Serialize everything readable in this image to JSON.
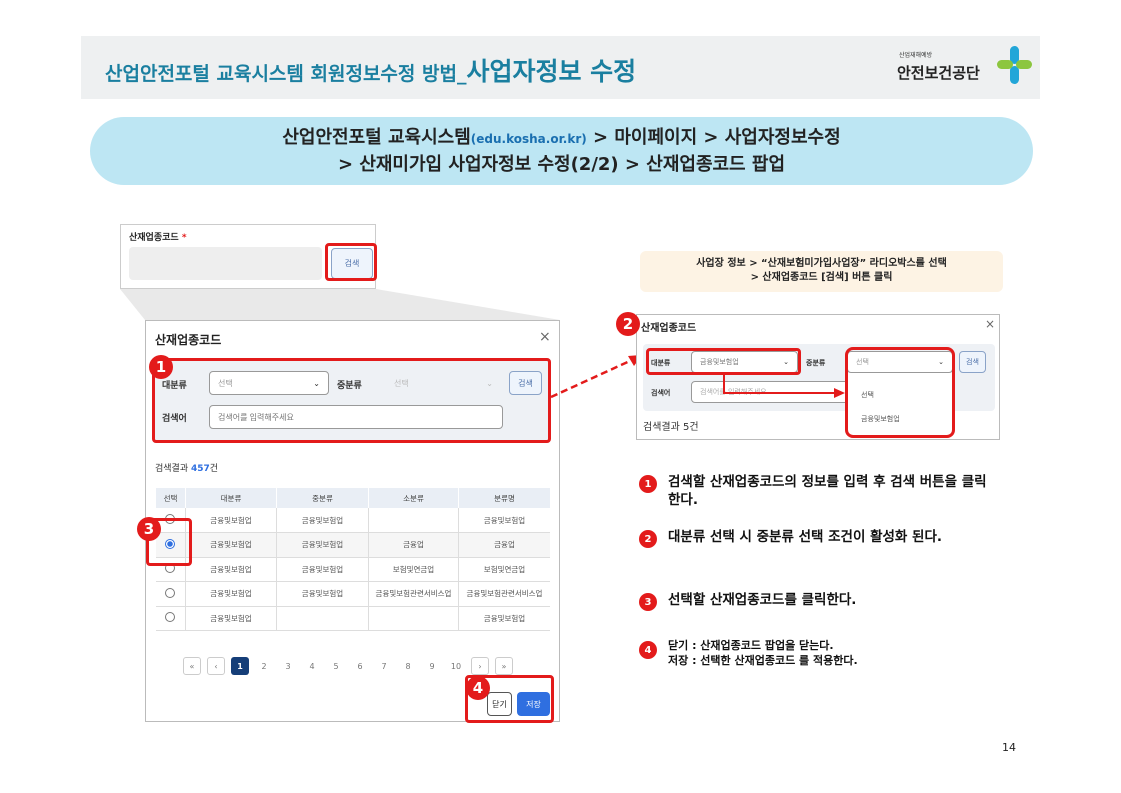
{
  "header": {
    "title_prefix": "산업안전포털 교육시스템 회원정보수정 방법_",
    "title_main": "사업자정보 수정",
    "logo_small": "산업재해예방",
    "logo_name": "안전보건공단"
  },
  "breadcrumb": {
    "line1_a": "산업안전포털 교육시스템",
    "line1_url": "(edu.kosha.or.kr)",
    "line1_b": " > 마이페이지 > 사업자정보수정",
    "line2": "> 산재미가입 사업자정보 수정(2/2) > 산재업종코드 팝업"
  },
  "field_card": {
    "label": "산재업종코드",
    "required": "*",
    "search_button": "검색"
  },
  "modal": {
    "title": "산재업종코드",
    "close": "×",
    "major_label": "대분류",
    "major_value": "선택",
    "middle_label": "중분류",
    "middle_value": "선택",
    "search_button": "검색",
    "keyword_label": "검색어",
    "keyword_placeholder": "검색어를 입력해주세요",
    "result_label": "검색결과 ",
    "result_count": "457",
    "result_unit": "건",
    "columns": [
      "선택",
      "대분류",
      "중분류",
      "소분류",
      "분류명"
    ],
    "rows": [
      {
        "selected": false,
        "cells": [
          "금융및보험업",
          "금융및보험업",
          "",
          "금융및보험업"
        ]
      },
      {
        "selected": true,
        "cells": [
          "금융및보험업",
          "금융및보험업",
          "금융업",
          "금융업"
        ]
      },
      {
        "selected": false,
        "cells": [
          "금융및보험업",
          "금융및보험업",
          "보험및연금업",
          "보험및연금업"
        ]
      },
      {
        "selected": false,
        "cells": [
          "금융및보험업",
          "금융및보험업",
          "금융및보험관련서비스업",
          "금융및보험관련서비스업"
        ]
      },
      {
        "selected": false,
        "cells": [
          "금융및보험업",
          "",
          "",
          "금융및보험업"
        ]
      }
    ],
    "pagination": {
      "first": "«",
      "prev": "‹",
      "pages": [
        "1",
        "2",
        "3",
        "4",
        "5",
        "6",
        "7",
        "8",
        "9",
        "10"
      ],
      "current": "1",
      "next": "›",
      "last": "»"
    },
    "close_button": "닫기",
    "save_button": "저장"
  },
  "tip": {
    "line1": "사업장 정보 > “산재보험미가입사업장” 라디오박스를 선택",
    "line2": "> 산재업종코드 [검색] 버튼 클릭"
  },
  "example": {
    "title": "산재업종코드",
    "close": "×",
    "major_label": "대분류",
    "major_value": "금융및보험업",
    "middle_label": "중분류",
    "middle_value": "선택",
    "search_button": "검색",
    "keyword_label": "검색어",
    "keyword_placeholder": "검색어를 입력해주세요",
    "dropdown_options": [
      "선택",
      "금융및보험업"
    ],
    "result_text": "검색결과 5건"
  },
  "steps": [
    {
      "num": "1",
      "text": "검색할 산재업종코드의 정보를 입력 후 검색 버튼을 클릭한다."
    },
    {
      "num": "2",
      "text": "대분류 선택 시 중분류 선택 조건이 활성화 된다."
    },
    {
      "num": "3",
      "text": "선택할 산재업종코드를 클릭한다."
    },
    {
      "num": "4",
      "text": "닫기 : 산재업종코드 팝업을 닫는다.",
      "text2": "저장 : 선택한 산재업종코드 를 적용한다."
    }
  ],
  "page_number": "14",
  "colors": {
    "title": "#1a7fa0",
    "highlight": "#e31b1b",
    "primary": "#2f6fe0",
    "pill": "#bde6f3"
  }
}
